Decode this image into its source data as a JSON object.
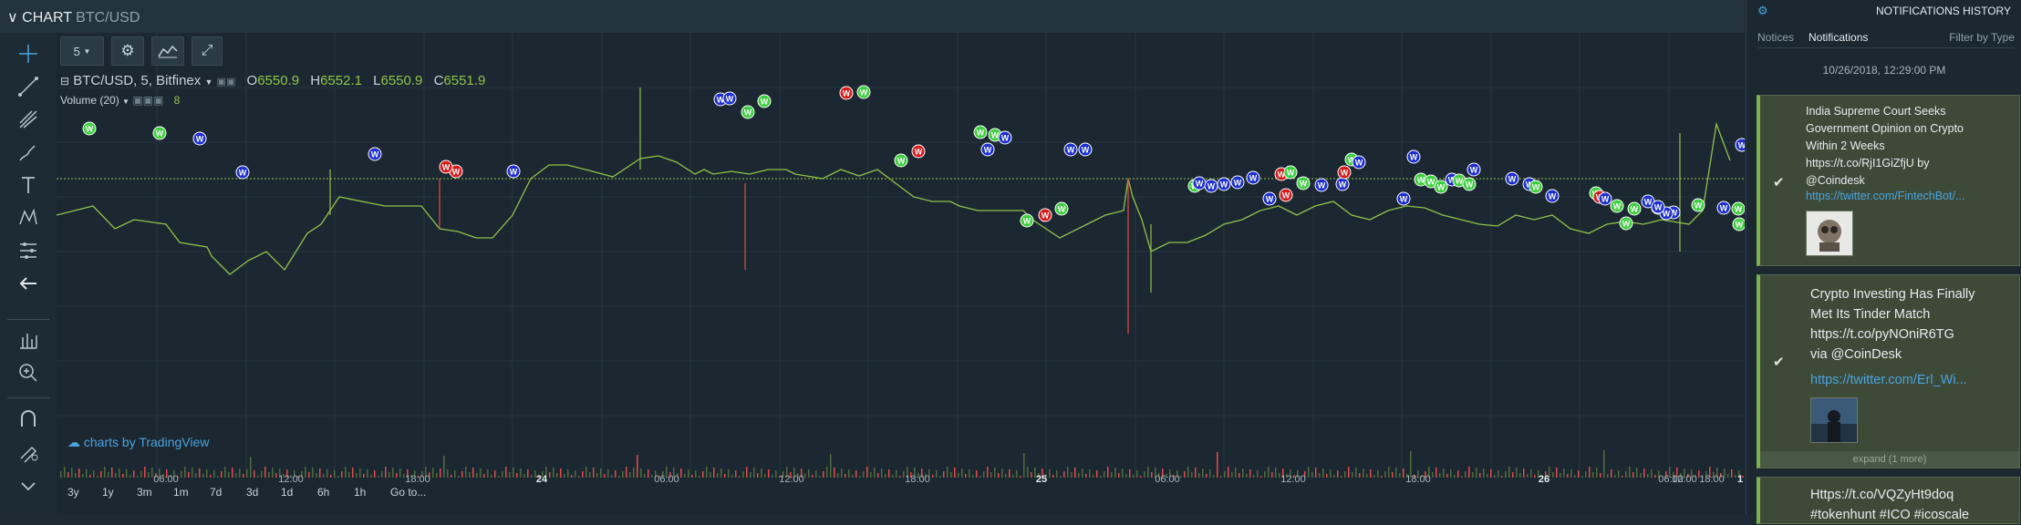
{
  "header": {
    "title": "CHART",
    "symbol": "BTC/USD"
  },
  "toolbar": {
    "interval": "5"
  },
  "legend": {
    "instrument": "BTC/USD, 5, Bitfinex",
    "o_label": "O",
    "o_value": "6550.9",
    "h_label": "H",
    "h_value": "6552.1",
    "l_label": "L",
    "l_value": "6550.9",
    "c_label": "C",
    "c_value": "6551.9",
    "volume_label": "Volume (20)",
    "volume_value": "8"
  },
  "attribution": "charts by TradingView",
  "time_axis": [
    "06:00",
    "12:00",
    "18:00",
    "24",
    "06:00",
    "12:00",
    "18:00",
    "25",
    "06:00",
    "12:00",
    "18:00",
    "26",
    "06:00",
    "12:00",
    "18:00",
    "1"
  ],
  "ranges": [
    "3y",
    "1y",
    "3m",
    "1m",
    "7d",
    "3d",
    "1d",
    "6h",
    "1h",
    "Go to..."
  ],
  "colors": {
    "up": "#8fc24b",
    "down": "#e04a4a",
    "marker_red": "#d91a1a",
    "marker_green": "#3ecf3e",
    "marker_blue": "#1d2fd3",
    "accent": "#4aa3df"
  },
  "markers": {
    "letter": "W"
  },
  "notifications": {
    "title": "NOTIFICATIONS HISTORY",
    "tabs": [
      "Notices",
      "Notifications"
    ],
    "filter": "Filter by Type",
    "date": "10/26/2018, 12:29:00 PM",
    "cards": [
      {
        "text_lines": [
          "India Supreme Court Seeks",
          "Government Opinion on Crypto",
          "Within 2 Weeks",
          "https://t.co/RjI1GiZfjU by",
          "@Coindesk"
        ],
        "link": "https://twitter.com/FintechBot/..."
      },
      {
        "text_lines": [
          "Crypto Investing Has Finally",
          "Met Its Tinder Match",
          "https://t.co/pyNOniR6TG",
          "via @CoinDesk"
        ],
        "link": "https://twitter.com/Erl_Wi...",
        "expand": "expand (1 more)"
      },
      {
        "text_lines": [
          "Https://t.co/VQZyHt9doq",
          "#tokenhunt #ICO #icoscale"
        ]
      }
    ]
  }
}
